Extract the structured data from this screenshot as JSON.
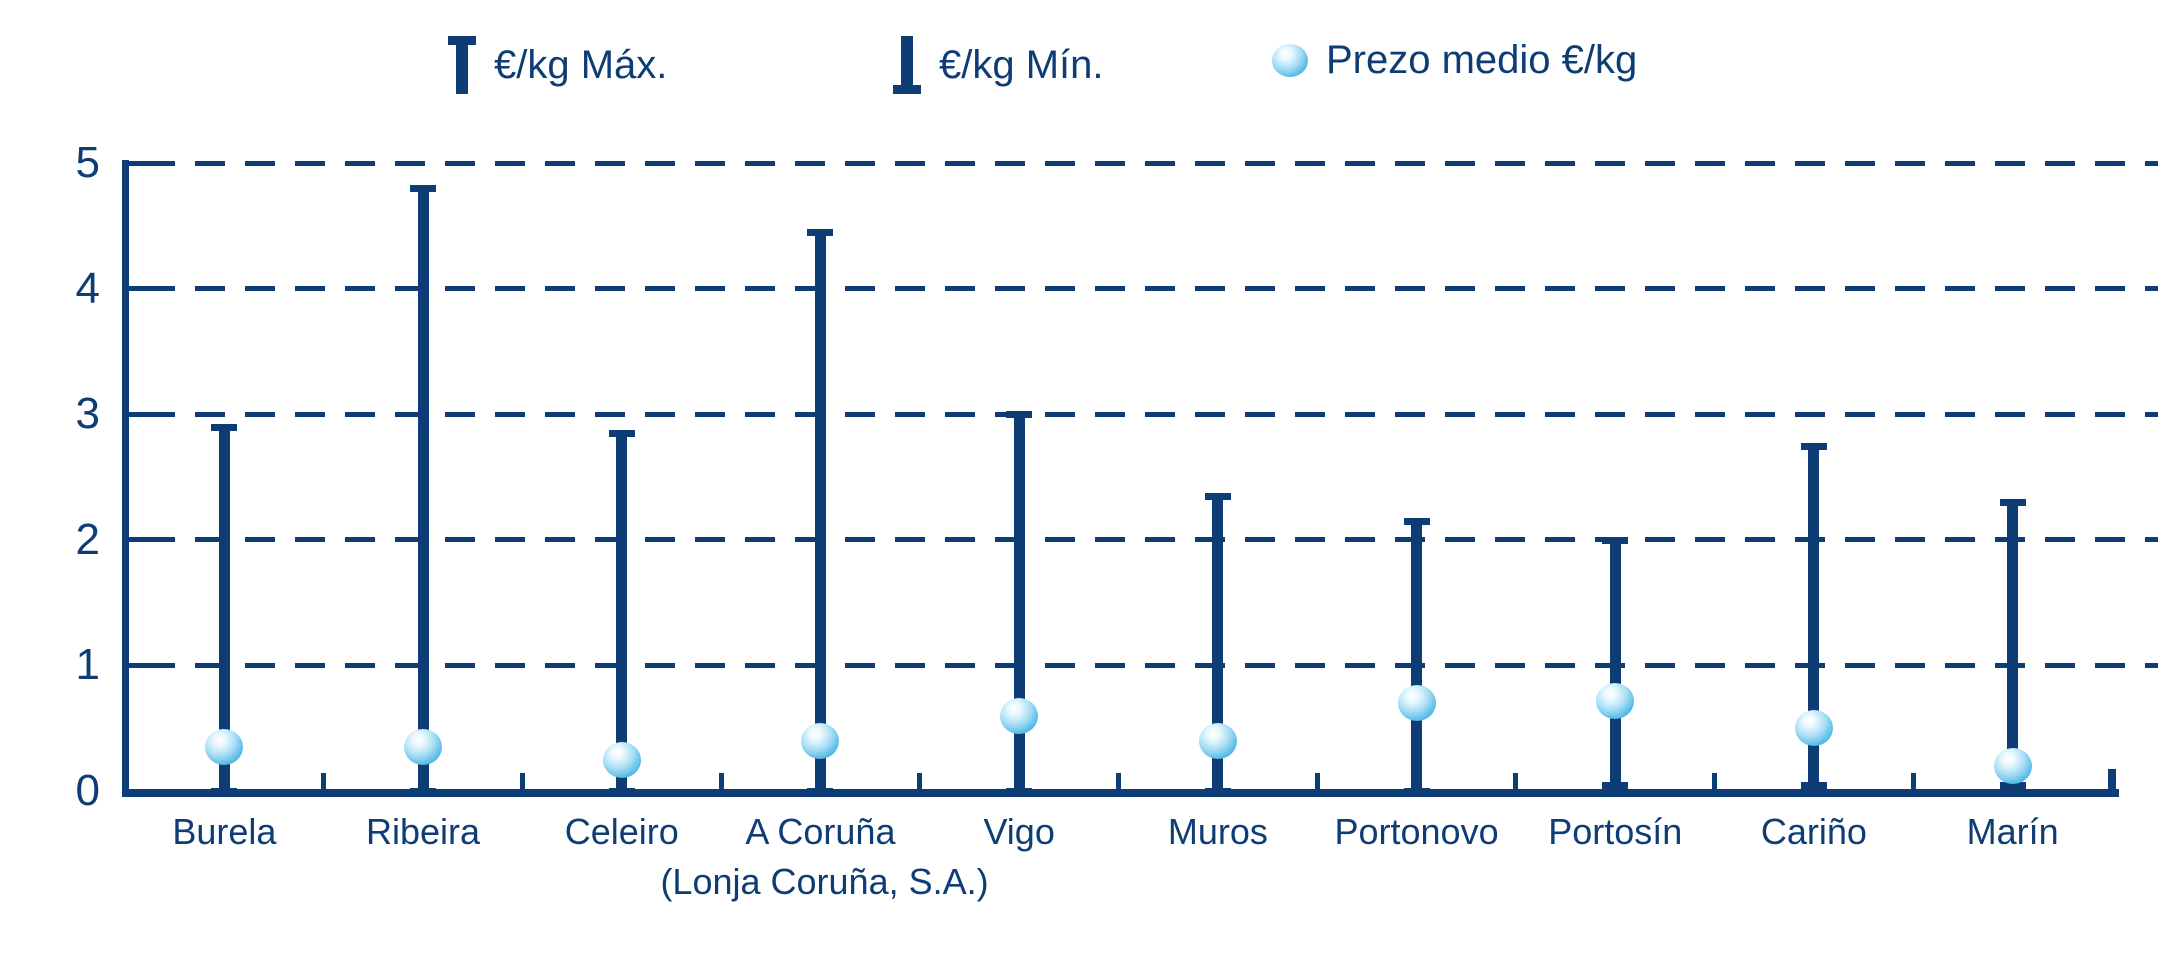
{
  "legend": [
    {
      "id": "max",
      "label": "€/kg Máx.",
      "symbol": "max-whisker-icon"
    },
    {
      "id": "min",
      "label": "€/kg Mín.",
      "symbol": "min-whisker-icon"
    },
    {
      "id": "medio",
      "label": "Prezo medio €/kg",
      "symbol": "mean-sphere-icon"
    }
  ],
  "colors": {
    "navy": "#0e3d75",
    "sphere_highlight": "#ffffff",
    "sphere_mid": "#aadff5",
    "sphere_edge": "#1a8ac4"
  },
  "chart_data": {
    "type": "bar",
    "subtype": "high-low range bars with mean point markers",
    "categories": [
      "Burela",
      "Ribeira",
      "Celeiro",
      "A Coruña",
      "Vigo",
      "Muros",
      "Portonovo",
      "Portosín",
      "Cariño",
      "Marín"
    ],
    "category_sublabels": [
      {
        "category_index": 3,
        "label": "(Lonja Coruña, S.A.)"
      }
    ],
    "series": [
      {
        "name": "€/kg Máx.",
        "values": [
          2.9,
          4.8,
          2.85,
          4.45,
          3.0,
          2.35,
          2.15,
          2.0,
          2.75,
          2.3
        ]
      },
      {
        "name": "€/kg Mín.",
        "values": [
          0.0,
          0.0,
          0.0,
          0.0,
          0.0,
          0.0,
          0.0,
          0.05,
          0.05,
          0.05
        ]
      },
      {
        "name": "Prezo medio €/kg",
        "values": [
          0.35,
          0.35,
          0.25,
          0.4,
          0.6,
          0.4,
          0.7,
          0.72,
          0.5,
          0.2
        ]
      }
    ],
    "xlabel": "",
    "ylabel": "",
    "ylim": [
      0,
      5
    ],
    "yticks": [
      0,
      1,
      2,
      3,
      4,
      5
    ],
    "grid": "horizontal dashed lines at each integer",
    "legend_position": "top"
  }
}
